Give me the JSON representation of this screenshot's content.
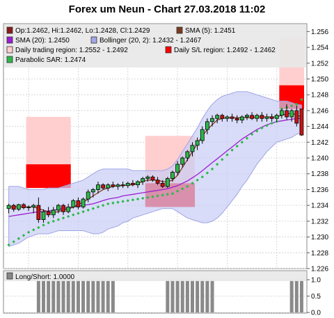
{
  "chart_data": {
    "type": "candlestick",
    "title": "Forex um Neun - Chart 27.03.2018 11:02",
    "legend": [
      {
        "label": "Op:1.2462, Hi:1.2462, Lo:1.2428, Cl:1.2429",
        "color": "#8b1a1a"
      },
      {
        "label": "SMA (5): 1.2451",
        "color": "#7a3b1f"
      },
      {
        "label": "SMA (20): 1.2450",
        "color": "#9a1fd0"
      },
      {
        "label": "Bollinger (20, 2): 1.2432 - 1.2467",
        "color": "#a3a8e8"
      },
      {
        "label": "Daily trading region: 1.2552 - 1.2492",
        "color": "#ffcfcf"
      },
      {
        "label": "Daily S/L region: 1.2492 - 1.2462",
        "color": "#ff0000"
      },
      {
        "label": "Parabolic SAR: 1.2474",
        "color": "#2db84a"
      }
    ],
    "y_axis": {
      "min": 1.226,
      "max": 1.257,
      "ticks": [
        "1.226",
        "1.228",
        "1.230",
        "1.232",
        "1.234",
        "1.236",
        "1.238",
        "1.240",
        "1.242",
        "1.244",
        "1.246",
        "1.248",
        "1.250",
        "1.252",
        "1.254",
        "1.256"
      ]
    },
    "n_bars": 60,
    "ohlc": [
      [
        1.2336,
        1.2342,
        1.233,
        1.234
      ],
      [
        1.234,
        1.2342,
        1.2332,
        1.2335
      ],
      [
        1.2335,
        1.2342,
        1.2333,
        1.2341
      ],
      [
        1.2341,
        1.2343,
        1.2335,
        1.2337
      ],
      [
        1.2337,
        1.234,
        1.2333,
        1.2338
      ],
      [
        1.2338,
        1.2342,
        1.233,
        1.234
      ],
      [
        1.234,
        1.235,
        1.2318,
        1.2322
      ],
      [
        1.2322,
        1.2335,
        1.2318,
        1.2332
      ],
      [
        1.2332,
        1.2338,
        1.2325,
        1.2328
      ],
      [
        1.2328,
        1.2338,
        1.2324,
        1.2334
      ],
      [
        1.2334,
        1.2342,
        1.233,
        1.234
      ],
      [
        1.234,
        1.2342,
        1.2328,
        1.2332
      ],
      [
        1.2332,
        1.2342,
        1.233,
        1.2338
      ],
      [
        1.2338,
        1.2348,
        1.2336,
        1.2346
      ],
      [
        1.2346,
        1.235,
        1.2335,
        1.2338
      ],
      [
        1.2338,
        1.235,
        1.2336,
        1.2348
      ],
      [
        1.2348,
        1.236,
        1.2344,
        1.2357
      ],
      [
        1.2357,
        1.2362,
        1.235,
        1.236
      ],
      [
        1.236,
        1.237,
        1.2355,
        1.2366
      ],
      [
        1.2366,
        1.2368,
        1.236,
        1.2362
      ],
      [
        1.2362,
        1.2368,
        1.2358,
        1.2366
      ],
      [
        1.2366,
        1.237,
        1.2362,
        1.2364
      ],
      [
        1.2364,
        1.2368,
        1.236,
        1.2366
      ],
      [
        1.2366,
        1.237,
        1.2362,
        1.2365
      ],
      [
        1.2365,
        1.237,
        1.2362,
        1.2368
      ],
      [
        1.2368,
        1.2372,
        1.2364,
        1.2366
      ],
      [
        1.2366,
        1.2372,
        1.2362,
        1.237
      ],
      [
        1.237,
        1.2376,
        1.2366,
        1.2374
      ],
      [
        1.2374,
        1.2378,
        1.237,
        1.2376
      ],
      [
        1.2376,
        1.2378,
        1.237,
        1.2372
      ],
      [
        1.2372,
        1.2376,
        1.2366,
        1.2368
      ],
      [
        1.2368,
        1.2372,
        1.2362,
        1.2364
      ],
      [
        1.2364,
        1.2376,
        1.2362,
        1.2374
      ],
      [
        1.2374,
        1.2384,
        1.237,
        1.2382
      ],
      [
        1.2382,
        1.2396,
        1.2378,
        1.2392
      ],
      [
        1.2392,
        1.2402,
        1.2388,
        1.24
      ],
      [
        1.24,
        1.241,
        1.2396,
        1.2408
      ],
      [
        1.2408,
        1.242,
        1.2402,
        1.2416
      ],
      [
        1.2416,
        1.2426,
        1.241,
        1.2422
      ],
      [
        1.2422,
        1.244,
        1.2418,
        1.2436
      ],
      [
        1.2436,
        1.245,
        1.243,
        1.2446
      ],
      [
        1.2446,
        1.2454,
        1.244,
        1.245
      ],
      [
        1.245,
        1.2456,
        1.2444,
        1.2454
      ],
      [
        1.2454,
        1.2456,
        1.2446,
        1.245
      ],
      [
        1.245,
        1.2454,
        1.2446,
        1.2452
      ],
      [
        1.2452,
        1.2456,
        1.2446,
        1.245
      ],
      [
        1.245,
        1.2454,
        1.2444,
        1.2448
      ],
      [
        1.2448,
        1.2454,
        1.2444,
        1.2452
      ],
      [
        1.2452,
        1.2456,
        1.2448,
        1.2454
      ],
      [
        1.2454,
        1.2458,
        1.2448,
        1.245
      ],
      [
        1.245,
        1.2456,
        1.2446,
        1.2454
      ],
      [
        1.2454,
        1.2458,
        1.2446,
        1.245
      ],
      [
        1.245,
        1.2456,
        1.2446,
        1.2452
      ],
      [
        1.2452,
        1.2456,
        1.2446,
        1.245
      ],
      [
        1.245,
        1.2456,
        1.2446,
        1.2454
      ],
      [
        1.2454,
        1.2462,
        1.245,
        1.246
      ],
      [
        1.246,
        1.2468,
        1.2448,
        1.2452
      ],
      [
        1.2452,
        1.2462,
        1.2446,
        1.246
      ],
      [
        1.246,
        1.2466,
        1.244,
        1.2444
      ],
      [
        1.2462,
        1.2462,
        1.2428,
        1.2429
      ]
    ],
    "sma5": [
      1.2338,
      1.2338,
      1.2338,
      1.2338,
      1.2338,
      1.2338,
      1.2336,
      1.2334,
      1.2332,
      1.2331,
      1.2332,
      1.2334,
      1.2335,
      1.2338,
      1.2341,
      1.2344,
      1.2348,
      1.2352,
      1.2356,
      1.236,
      1.2362,
      1.2364,
      1.2365,
      1.2365,
      1.2366,
      1.2366,
      1.2368,
      1.237,
      1.2372,
      1.2372,
      1.2372,
      1.237,
      1.237,
      1.2372,
      1.2378,
      1.2388,
      1.2398,
      1.2408,
      1.2418,
      1.2428,
      1.2436,
      1.2442,
      1.2448,
      1.245,
      1.2451,
      1.2451,
      1.2451,
      1.2451,
      1.2451,
      1.2451,
      1.2452,
      1.2452,
      1.2452,
      1.2452,
      1.2452,
      1.2454,
      1.2456,
      1.2456,
      1.2455,
      1.2451
    ],
    "sma20": [
      1.2326,
      1.2327,
      1.2328,
      1.2329,
      1.233,
      1.2331,
      1.2332,
      1.2332,
      1.2333,
      1.2334,
      1.2335,
      1.2336,
      1.2337,
      1.2338,
      1.2339,
      1.234,
      1.2341,
      1.2342,
      1.2344,
      1.2346,
      1.2348,
      1.2349,
      1.235,
      1.2352,
      1.2353,
      1.2354,
      1.2355,
      1.2356,
      1.2357,
      1.2358,
      1.2359,
      1.236,
      1.2361,
      1.2363,
      1.2365,
      1.2368,
      1.2371,
      1.2375,
      1.2379,
      1.2384,
      1.2389,
      1.2394,
      1.2399,
      1.2404,
      1.2409,
      1.2414,
      1.2419,
      1.2424,
      1.2428,
      1.2432,
      1.2436,
      1.2439,
      1.2442,
      1.2444,
      1.2446,
      1.2447,
      1.2448,
      1.2449,
      1.245,
      1.245
    ],
    "bb_upper": [
      1.2364,
      1.2364,
      1.2364,
      1.2362,
      1.236,
      1.236,
      1.236,
      1.236,
      1.2362,
      1.2362,
      1.2362,
      1.2364,
      1.2366,
      1.2368,
      1.237,
      1.2372,
      1.2376,
      1.238,
      1.2384,
      1.2386,
      1.2386,
      1.2386,
      1.2386,
      1.2386,
      1.2386,
      1.2384,
      1.2384,
      1.2384,
      1.2384,
      1.2384,
      1.2384,
      1.2384,
      1.2386,
      1.239,
      1.2398,
      1.2408,
      1.2418,
      1.2428,
      1.2438,
      1.245,
      1.246,
      1.2468,
      1.2474,
      1.2478,
      1.248,
      1.2482,
      1.2484,
      1.2484,
      1.2484,
      1.2482,
      1.248,
      1.2478,
      1.2476,
      1.2474,
      1.2472,
      1.2472,
      1.2472,
      1.247,
      1.2468,
      1.2467
    ],
    "bb_lower": [
      1.2288,
      1.229,
      1.2292,
      1.2296,
      1.23,
      1.2302,
      1.2304,
      1.2304,
      1.2304,
      1.2306,
      1.2308,
      1.2308,
      1.2308,
      1.2308,
      1.2308,
      1.2308,
      1.2306,
      1.2304,
      1.2304,
      1.2306,
      1.231,
      1.2312,
      1.2314,
      1.2318,
      1.232,
      1.2324,
      1.2326,
      1.2328,
      1.233,
      1.2332,
      1.2334,
      1.2336,
      1.2336,
      1.2336,
      1.2332,
      1.2328,
      1.2324,
      1.2322,
      1.232,
      1.2318,
      1.2318,
      1.232,
      1.2324,
      1.233,
      1.2338,
      1.2346,
      1.2354,
      1.2364,
      1.2372,
      1.2382,
      1.2392,
      1.24,
      1.2408,
      1.2414,
      1.242,
      1.2422,
      1.2424,
      1.2426,
      1.243,
      1.2432
    ],
    "psar": [
      1.229,
      1.2294,
      1.2298,
      1.2302,
      1.2306,
      1.2309,
      1.2312,
      1.2315,
      1.2318,
      1.232,
      1.2322,
      1.2324,
      1.2326,
      1.2328,
      1.233,
      1.2332,
      1.2334,
      1.2336,
      1.2338,
      1.234,
      1.2342,
      1.2343,
      1.2344,
      1.2345,
      1.2346,
      1.2347,
      1.2348,
      1.2349,
      1.235,
      1.2351,
      1.2352,
      1.2353,
      1.2354,
      1.2355,
      1.2358,
      1.2361,
      1.2364,
      1.2368,
      1.2372,
      1.2376,
      1.2381,
      1.2386,
      1.2392,
      1.2398,
      1.2404,
      1.241,
      1.2415,
      1.242,
      1.2425,
      1.243,
      1.2434,
      1.2438,
      1.2441,
      1.2444,
      1.2446,
      1.2462,
      1.2464,
      1.2466,
      1.2468,
      1.2474
    ],
    "trading_regions": [
      {
        "start": 4,
        "end": 12,
        "high": 1.2452,
        "low": 1.2392
      },
      {
        "start": 28,
        "end": 37,
        "high": 1.2428,
        "low": 1.2368
      },
      {
        "start": 55,
        "end": 59,
        "high": 1.2552,
        "low": 1.2492
      }
    ],
    "sl_regions": [
      {
        "start": 4,
        "end": 12,
        "high": 1.2392,
        "low": 1.2362
      },
      {
        "start": 28,
        "end": 37,
        "high": 1.2368,
        "low": 1.2338
      },
      {
        "start": 55,
        "end": 59,
        "high": 1.2492,
        "low": 1.2462
      }
    ],
    "sub_chart": {
      "legend": "Long/Short: 1.0000",
      "y_ticks": [
        "0.0",
        "0.5",
        "1.0"
      ],
      "values": [
        0,
        0,
        0,
        0,
        0,
        0,
        1,
        1,
        1,
        1,
        1,
        1,
        1,
        1,
        1,
        1,
        1,
        1,
        1,
        1,
        1,
        1,
        0,
        0,
        0,
        0,
        0,
        0,
        0,
        0,
        0,
        0,
        1,
        1,
        1,
        1,
        1,
        1,
        1,
        1,
        1,
        1,
        0,
        0,
        0,
        0,
        0,
        0,
        0,
        0,
        0,
        0,
        0,
        0,
        0,
        0,
        0,
        1,
        1,
        1
      ]
    }
  }
}
